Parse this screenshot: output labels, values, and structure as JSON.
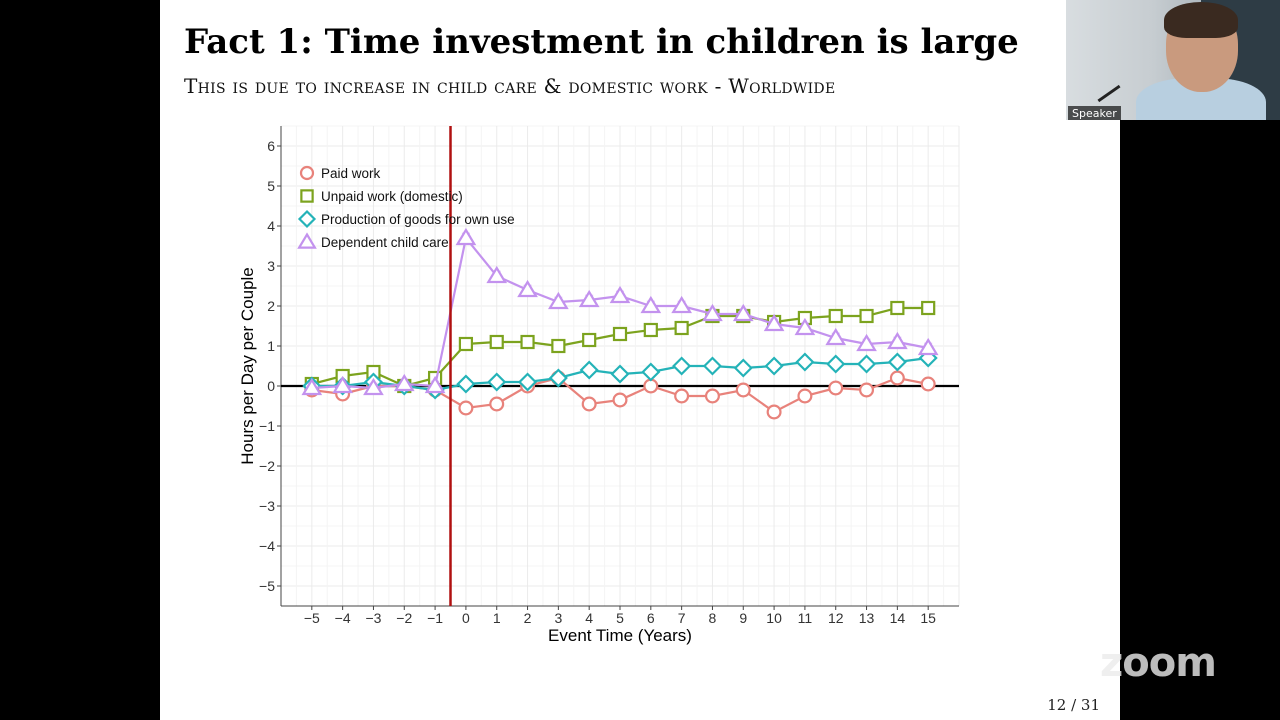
{
  "slide": {
    "title": "Fact 1: Time investment in children is large",
    "subtitle": "This is due to increase in child care & domestic work - Worldwide",
    "page_number": "12 / 31"
  },
  "speaker": {
    "label": "Speaker"
  },
  "watermark": "zoom",
  "chart_data": {
    "type": "line",
    "xlabel": "Event Time (Years)",
    "ylabel": "Hours per Day per Couple",
    "x": [
      -5,
      -4,
      -3,
      -2,
      -1,
      0,
      1,
      2,
      3,
      4,
      5,
      6,
      7,
      8,
      9,
      10,
      11,
      12,
      13,
      14,
      15
    ],
    "xticks": [
      "−5",
      "−4",
      "−3",
      "−2",
      "−1",
      "0",
      "1",
      "2",
      "3",
      "4",
      "5",
      "6",
      "7",
      "8",
      "9",
      "10",
      "11",
      "12",
      "13",
      "14",
      "15"
    ],
    "yticks": [
      "6",
      "5",
      "4",
      "3",
      "2",
      "1",
      "0",
      "−1",
      "−2",
      "−3",
      "−4",
      "−5"
    ],
    "xlim": [
      -6,
      16
    ],
    "ylim": [
      -5.5,
      6.5
    ],
    "grid": true,
    "event_line_x": -0.5,
    "legend_position": "top-left",
    "series": [
      {
        "name": "Paid work",
        "color": "#e8827b",
        "marker": "circle",
        "values": [
          -0.1,
          -0.2,
          0.0,
          0.0,
          -0.1,
          -0.55,
          -0.45,
          0.0,
          0.2,
          -0.45,
          -0.35,
          0.0,
          -0.25,
          -0.25,
          -0.1,
          -0.65,
          -0.25,
          -0.05,
          -0.1,
          0.2,
          0.05
        ]
      },
      {
        "name": "Unpaid work (domestic)",
        "color": "#7ca31e",
        "marker": "square",
        "values": [
          0.05,
          0.25,
          0.35,
          0.0,
          0.2,
          1.05,
          1.1,
          1.1,
          1.0,
          1.15,
          1.3,
          1.4,
          1.45,
          1.75,
          1.75,
          1.6,
          1.7,
          1.75,
          1.75,
          1.95,
          1.95
        ]
      },
      {
        "name": "Production of goods for own use",
        "color": "#24b3b8",
        "marker": "diamond",
        "values": [
          0.0,
          0.0,
          0.1,
          0.0,
          -0.1,
          0.05,
          0.1,
          0.1,
          0.2,
          0.4,
          0.3,
          0.35,
          0.5,
          0.5,
          0.45,
          0.5,
          0.6,
          0.55,
          0.55,
          0.6,
          0.7
        ]
      },
      {
        "name": "Dependent child care",
        "color": "#c392ee",
        "marker": "triangle",
        "values": [
          -0.05,
          0.0,
          -0.05,
          0.05,
          0.0,
          3.7,
          2.75,
          2.4,
          2.1,
          2.15,
          2.25,
          2.0,
          2.0,
          1.8,
          1.8,
          1.55,
          1.45,
          1.2,
          1.05,
          1.1,
          0.95
        ]
      }
    ]
  }
}
